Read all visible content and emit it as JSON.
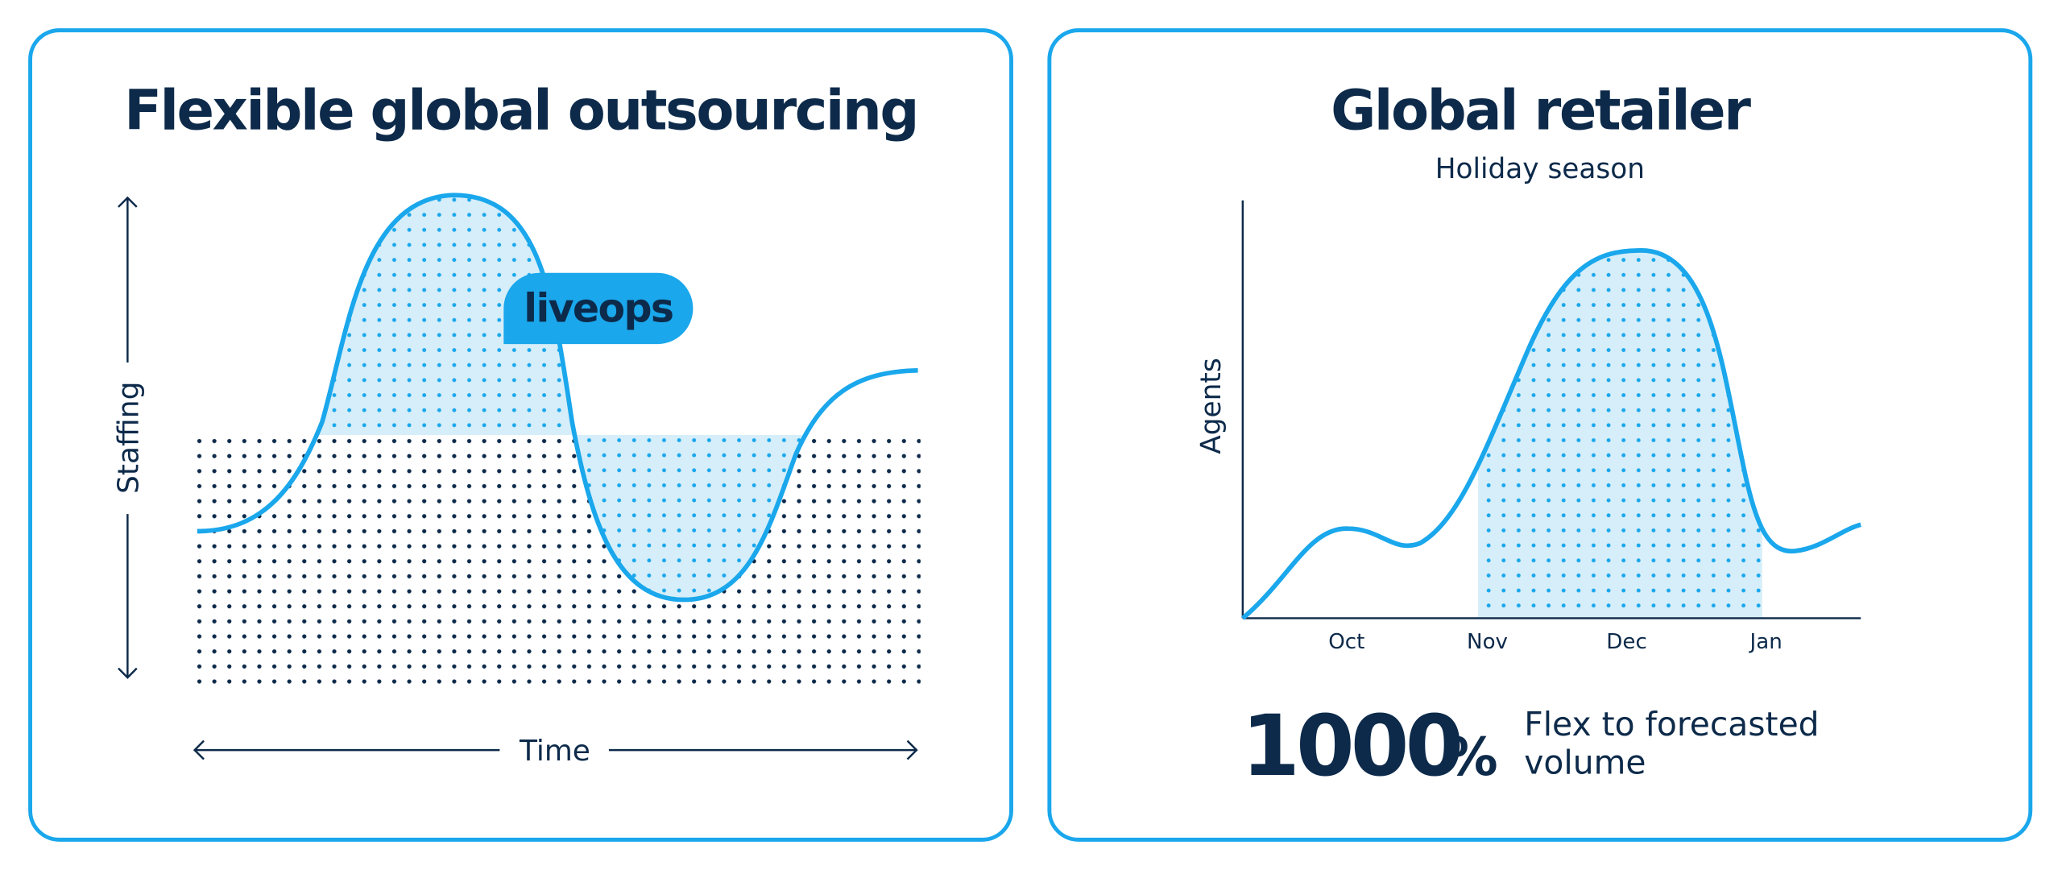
{
  "panels": [
    {
      "title": "Flexible global outsourcing",
      "badge": "liveops",
      "y_axis_label": "Staffing",
      "x_axis_label": "Time"
    },
    {
      "title": "Global retailer",
      "subtitle": "Holiday season",
      "y_axis_label": "Agents",
      "months": [
        "Oct",
        "Nov",
        "Dec",
        "Jan"
      ],
      "stat": {
        "number": "1000",
        "unit": "%",
        "caption": [
          "Flex to forecasted",
          "volume"
        ]
      }
    }
  ]
}
